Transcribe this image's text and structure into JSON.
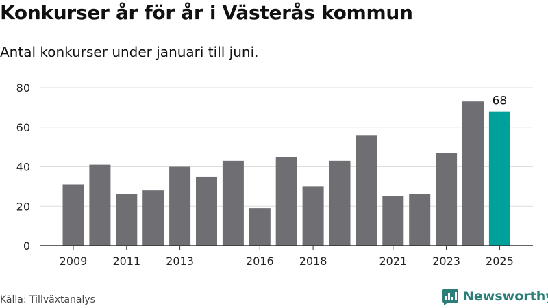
{
  "header": {
    "title": "Konkurser år för år i Västerås kommun",
    "subtitle": "Antal konkurser under januari till juni."
  },
  "footer": {
    "source": "Källa: Tillväxtanalys",
    "brand": "Newsworthy"
  },
  "colors": {
    "bar": "#6f6e73",
    "highlight": "#00a19a",
    "grid": "#dddddd",
    "brand": "#2b7f78"
  },
  "chart_data": {
    "type": "bar",
    "categories": [
      "2009",
      "2010",
      "2011",
      "2012",
      "2013",
      "2014",
      "2015",
      "2016",
      "2017",
      "2018",
      "2019",
      "2020",
      "2021",
      "2022",
      "2023",
      "2024",
      "2025"
    ],
    "values": [
      31,
      41,
      26,
      28,
      40,
      35,
      43,
      19,
      45,
      30,
      43,
      56,
      25,
      26,
      47,
      73,
      68
    ],
    "x_tick_labels": [
      "2009",
      "2011",
      "2013",
      "2016",
      "2018",
      "2021",
      "2023",
      "2025"
    ],
    "y_ticks": [
      0,
      20,
      40,
      60,
      80
    ],
    "ylim": [
      0,
      80
    ],
    "grid": true,
    "highlight_category": "2025",
    "data_labels": [
      {
        "category": "2025",
        "text": "68"
      }
    ]
  }
}
